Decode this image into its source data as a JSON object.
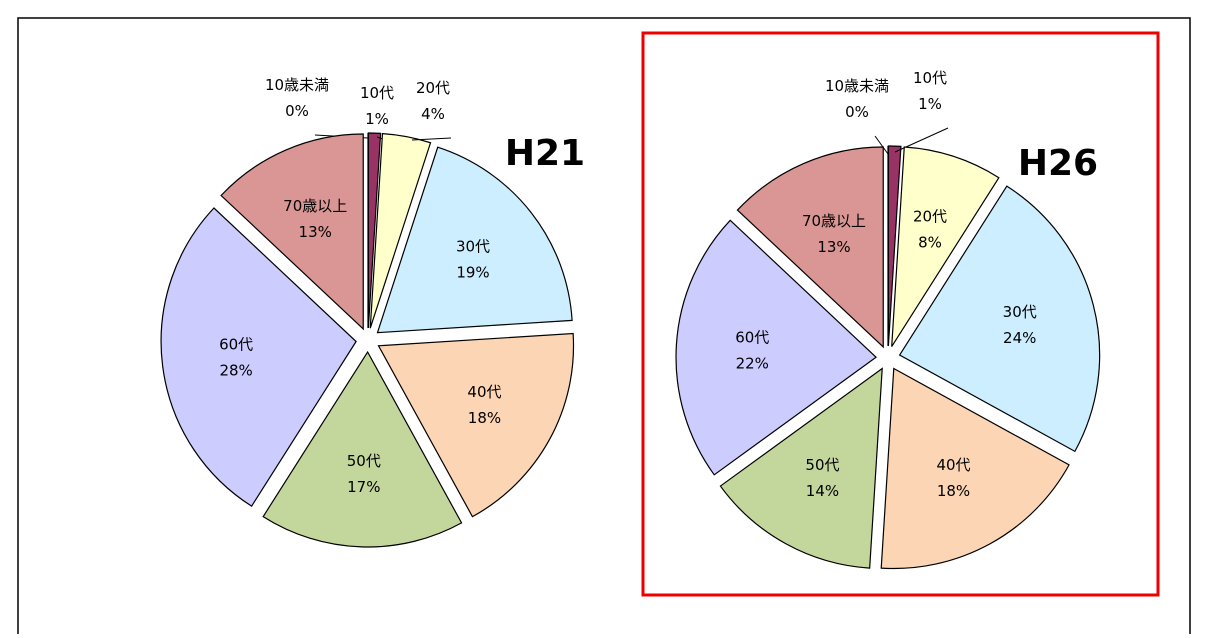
{
  "chart_data": [
    {
      "type": "pie",
      "title": "H21",
      "categories": [
        "10歳未満",
        "10代",
        "20代",
        "30代",
        "40代",
        "50代",
        "60代",
        "70歳以上"
      ],
      "values": [
        0,
        1,
        4,
        19,
        18,
        17,
        28,
        13
      ],
      "value_labels": [
        "0%",
        "1%",
        "4%",
        "19%",
        "18%",
        "17%",
        "28%",
        "13%"
      ],
      "colors": [
        "#7f1f4f",
        "#993366",
        "#ffffcc",
        "#cceeff",
        "#fcd5b5",
        "#c3d69b",
        "#ccccff",
        "#d99694"
      ]
    },
    {
      "type": "pie",
      "title": "H26",
      "categories": [
        "10歳未満",
        "10代",
        "20代",
        "30代",
        "40代",
        "50代",
        "60代",
        "70歳以上"
      ],
      "values": [
        0,
        1,
        8,
        24,
        18,
        14,
        22,
        13
      ],
      "value_labels": [
        "0%",
        "1%",
        "8%",
        "24%",
        "18%",
        "14%",
        "22%",
        "13%"
      ],
      "colors": [
        "#7f1f4f",
        "#993366",
        "#ffffcc",
        "#cceeff",
        "#fcd5b5",
        "#c3d69b",
        "#ccccff",
        "#d99694"
      ]
    }
  ]
}
